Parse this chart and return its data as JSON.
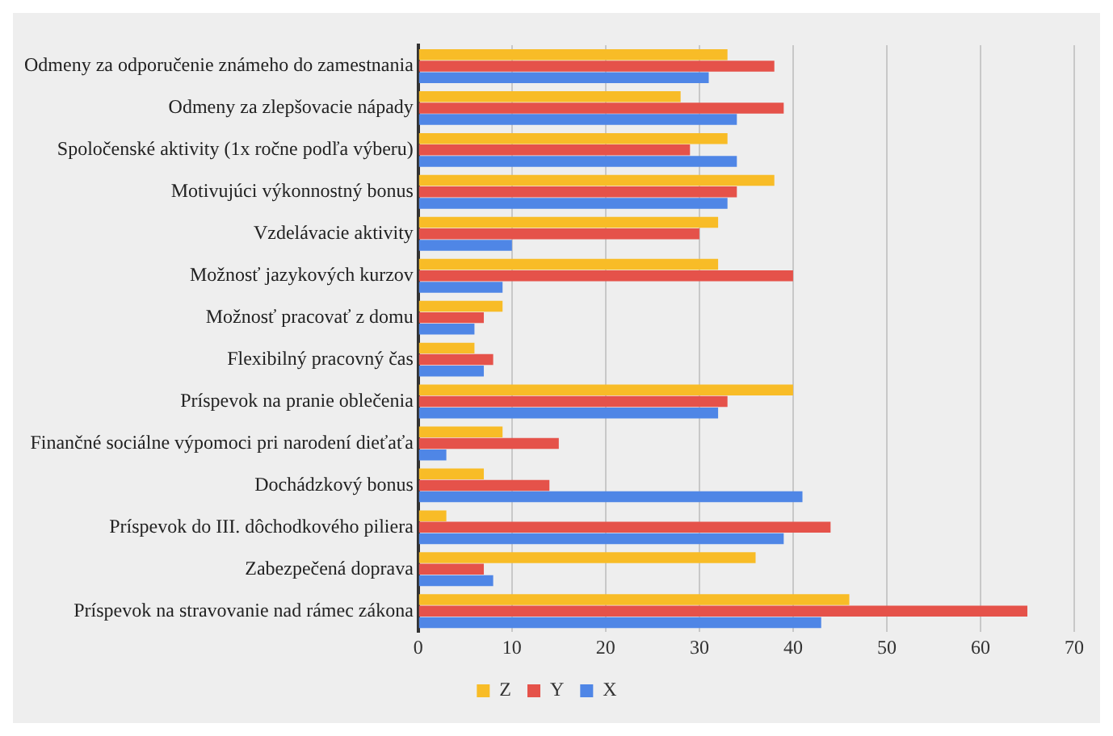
{
  "chart_data": {
    "type": "bar",
    "orientation": "horizontal",
    "categories": [
      "Odmeny za odporučenie známeho do zamestnania",
      "Odmeny za zlepšovacie nápady",
      "Spoločenské aktivity (1x ročne podľa výberu)",
      "Motivujúci výkonnostný bonus",
      "Vzdelávacie aktivity",
      "Možnosť jazykových kurzov",
      "Možnosť pracovať z domu",
      "Flexibilný pracovný čas",
      "Príspevok na pranie oblečenia",
      "Finančné sociálne výpomoci pri narodení dieťaťa",
      "Dochádzkový bonus",
      "Príspevok do III. dôchodkového piliera",
      "Zabezpečená doprava",
      "Príspevok na stravovanie nad rámec zákona"
    ],
    "series": [
      {
        "name": "Z",
        "color": "#f8bc27",
        "values": [
          33,
          28,
          33,
          38,
          32,
          32,
          9,
          6,
          40,
          9,
          7,
          3,
          36,
          46
        ]
      },
      {
        "name": "Y",
        "color": "#e5524a",
        "values": [
          38,
          39,
          29,
          34,
          30,
          40,
          7,
          8,
          33,
          15,
          14,
          44,
          7,
          65
        ]
      },
      {
        "name": "X",
        "color": "#4f86e6",
        "values": [
          31,
          34,
          34,
          33,
          10,
          9,
          6,
          7,
          32,
          3,
          41,
          39,
          8,
          43
        ]
      }
    ],
    "xlim": [
      0,
      70
    ],
    "xticks": [
      0,
      10,
      20,
      30,
      40,
      50,
      60,
      70
    ],
    "grid": "x",
    "legend": "bottom"
  }
}
